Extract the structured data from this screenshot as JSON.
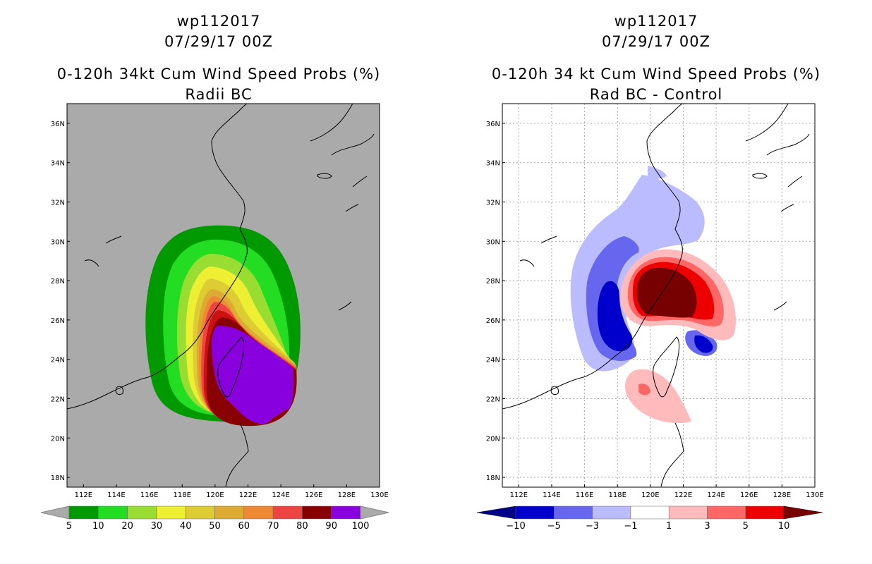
{
  "chart_data": [
    {
      "type": "heatmap",
      "storm_id": "wp112017",
      "date": "07/29/17 00Z",
      "title": "0-120h 34kt Cum Wind Speed Probs (%)",
      "subtitle": "Radii BC",
      "x_ticks": [
        "112E",
        "114E",
        "116E",
        "118E",
        "120E",
        "122E",
        "124E",
        "126E",
        "128E",
        "130E"
      ],
      "y_ticks": [
        "36N",
        "34N",
        "32N",
        "30N",
        "28N",
        "26N",
        "24N",
        "22N",
        "20N",
        "18N"
      ],
      "xlim": [
        111,
        130
      ],
      "ylim": [
        17.5,
        37
      ],
      "colorbar_levels": [
        "5",
        "10",
        "20",
        "30",
        "40",
        "50",
        "60",
        "70",
        "80",
        "90",
        "100"
      ],
      "colorbar_colors": [
        "#009900",
        "#22dd22",
        "#99dd33",
        "#eeee33",
        "#ddcc33",
        "#ddaa33",
        "#ee8833",
        "#ee4444",
        "#880000",
        "#8800dd"
      ],
      "field_colors": [
        "#009900",
        "#22dd22",
        "#99dd33",
        "#eeee33",
        "#ddcc33",
        "#ddaa33",
        "#ee8833",
        "#ee4444",
        "#cc1111",
        "#880000",
        "#8800dd"
      ],
      "background_color": "#aaaaaa"
    },
    {
      "type": "heatmap",
      "storm_id": "wp112017",
      "date": "07/29/17 00Z",
      "title": "0-120h 34 kt Cum Wind Speed Probs (%)",
      "subtitle": "Rad BC - Control",
      "x_ticks": [
        "112E",
        "114E",
        "116E",
        "118E",
        "120E",
        "122E",
        "124E",
        "126E",
        "128E",
        "130E"
      ],
      "y_ticks": [
        "36N",
        "34N",
        "32N",
        "30N",
        "28N",
        "26N",
        "24N",
        "22N",
        "20N",
        "18N"
      ],
      "xlim": [
        111,
        130
      ],
      "ylim": [
        17.5,
        37
      ],
      "colorbar_levels": [
        "-10",
        "-5",
        "-3",
        "-1",
        "1",
        "3",
        "5",
        "10"
      ],
      "colorbar_colors": [
        "#0000cc",
        "#6666ee",
        "#bbbbff",
        "#ffffff",
        "#ffbbbb",
        "#ff6666",
        "#ee0000"
      ],
      "colorbar_ends": [
        "#000088",
        "#770000"
      ],
      "background_color": "#ffffff"
    }
  ]
}
